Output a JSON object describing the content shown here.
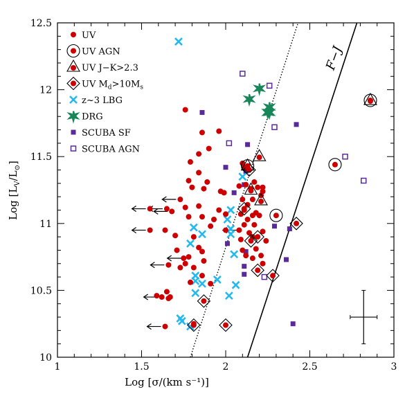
{
  "chart_data": {
    "type": "scatter",
    "xlabel": "Log [σ/(km s⁻¹)]",
    "ylabel": "Log [L_V/L_⊙]",
    "xlim": [
      1,
      3
    ],
    "ylim": [
      10,
      12.5
    ],
    "x_ticks": [
      "1",
      "1.5",
      "2",
      "2.5",
      "3"
    ],
    "y_ticks": [
      "10",
      "10.5",
      "11",
      "11.5",
      "12",
      "12.5"
    ],
    "legend_position": "top-left",
    "lines": [
      {
        "label": "F-J",
        "style": "solid",
        "x": [
          2.13,
          2.78
        ],
        "y": [
          10,
          12.5
        ]
      },
      {
        "label": "",
        "style": "dotted",
        "x": [
          1.79,
          2.43
        ],
        "y": [
          10,
          12.5
        ]
      }
    ],
    "annotation": "F−J",
    "error_bar": {
      "x": 2.82,
      "y": 10.3,
      "x_err": 0.08,
      "y_err": 0.2
    },
    "series": [
      {
        "name": "UV",
        "marker": "filled-circle",
        "color": "#cc0000",
        "points": [
          [
            1.76,
            11.85
          ],
          [
            1.86,
            11.68
          ],
          [
            1.96,
            11.69
          ],
          [
            1.9,
            11.56
          ],
          [
            1.84,
            11.52
          ],
          [
            1.79,
            11.46
          ],
          [
            1.84,
            11.38
          ],
          [
            1.78,
            11.32
          ],
          [
            1.89,
            11.31
          ],
          [
            1.8,
            11.27
          ],
          [
            1.87,
            11.26
          ],
          [
            1.97,
            11.24
          ],
          [
            1.99,
            11.23
          ],
          [
            1.96,
            11.1
          ],
          [
            2.0,
            11.07
          ],
          [
            1.73,
            11.18
          ],
          [
            1.84,
            11.13
          ],
          [
            1.76,
            11.12
          ],
          [
            1.68,
            11.09
          ],
          [
            1.65,
            11.11
          ],
          [
            1.55,
            11.11
          ],
          [
            1.78,
            11.05
          ],
          [
            1.86,
            11.05
          ],
          [
            1.93,
            11.03
          ],
          [
            1.91,
            10.98
          ],
          [
            2.0,
            10.95
          ],
          [
            1.81,
            10.9
          ],
          [
            1.55,
            10.95
          ],
          [
            1.64,
            10.95
          ],
          [
            1.7,
            10.91
          ],
          [
            1.84,
            10.82
          ],
          [
            1.86,
            10.79
          ],
          [
            1.71,
            10.8
          ],
          [
            1.78,
            10.75
          ],
          [
            1.75,
            10.74
          ],
          [
            1.87,
            10.72
          ],
          [
            1.66,
            10.69
          ],
          [
            1.73,
            10.67
          ],
          [
            1.81,
            10.67
          ],
          [
            1.76,
            10.7
          ],
          [
            1.86,
            10.61
          ],
          [
            1.79,
            10.56
          ],
          [
            1.91,
            10.55
          ],
          [
            1.65,
            10.49
          ],
          [
            1.62,
            10.45
          ],
          [
            1.59,
            10.46
          ],
          [
            1.66,
            10.44
          ],
          [
            1.67,
            10.45
          ],
          [
            1.81,
            10.25
          ],
          [
            1.64,
            10.23
          ],
          [
            2.1,
            11.45
          ],
          [
            2.11,
            11.42
          ],
          [
            2.08,
            11.28
          ],
          [
            2.12,
            11.29
          ],
          [
            2.15,
            11.26
          ],
          [
            2.17,
            11.31
          ],
          [
            2.19,
            11.27
          ],
          [
            2.22,
            11.27
          ],
          [
            2.22,
            11.24
          ],
          [
            2.1,
            11.18
          ],
          [
            2.13,
            11.14
          ],
          [
            2.16,
            11.18
          ],
          [
            2.21,
            11.21
          ],
          [
            2.11,
            11.1
          ],
          [
            2.09,
            11.07
          ],
          [
            2.16,
            11.06
          ],
          [
            2.18,
            11.08
          ],
          [
            2.13,
            11.03
          ],
          [
            2.2,
            11.06
          ],
          [
            2.11,
            10.99
          ],
          [
            2.17,
            10.99
          ],
          [
            2.08,
            10.95
          ],
          [
            2.14,
            10.93
          ],
          [
            2.22,
            10.94
          ],
          [
            2.16,
            10.9
          ],
          [
            2.24,
            10.87
          ],
          [
            2.1,
            10.8
          ],
          [
            2.18,
            10.81
          ],
          [
            2.21,
            10.76
          ],
          [
            2.16,
            10.74
          ],
          [
            2.22,
            10.7
          ],
          [
            2.12,
            10.76
          ],
          [
            2.09,
            10.88
          ]
        ]
      },
      {
        "name": "UV AGN",
        "marker": "circled-dot",
        "color": "#cc0000",
        "points": [
          [
            2.3,
            11.06
          ],
          [
            2.65,
            11.44
          ],
          [
            2.86,
            11.92
          ],
          [
            2.13,
            11.43
          ]
        ]
      },
      {
        "name": "UV J−K>2.3",
        "marker": "triangled-dot",
        "color": "#cc0000",
        "points": [
          [
            2.13,
            11.43
          ],
          [
            2.2,
            11.5
          ],
          [
            2.15,
            11.25
          ],
          [
            2.21,
            11.17
          ],
          [
            2.86,
            11.92
          ]
        ]
      },
      {
        "name": "UV M_d>10M_s",
        "marker": "diamond-dot",
        "color": "#cc0000",
        "points": [
          [
            2.14,
            11.4
          ],
          [
            2.11,
            11.11
          ],
          [
            2.19,
            10.9
          ],
          [
            2.15,
            10.87
          ],
          [
            2.19,
            10.65
          ],
          [
            2.28,
            10.61
          ],
          [
            2.42,
            11.0
          ],
          [
            1.87,
            10.42
          ],
          [
            1.81,
            10.24
          ],
          [
            2.0,
            10.24
          ]
        ]
      },
      {
        "name": "z~3 LBG",
        "marker": "cross",
        "color": "#22b8f0",
        "points": [
          [
            1.72,
            12.36
          ],
          [
            2.03,
            11.1
          ],
          [
            2.01,
            11.03
          ],
          [
            2.03,
            10.96
          ],
          [
            2.03,
            10.92
          ],
          [
            1.81,
            10.97
          ],
          [
            1.86,
            10.92
          ],
          [
            2.05,
            10.77
          ],
          [
            1.79,
            10.85
          ],
          [
            1.82,
            10.57
          ],
          [
            1.82,
            10.61
          ],
          [
            1.95,
            10.58
          ],
          [
            1.86,
            10.55
          ],
          [
            2.06,
            10.54
          ],
          [
            1.82,
            10.48
          ],
          [
            2.02,
            10.46
          ],
          [
            1.73,
            10.29
          ],
          [
            1.74,
            10.27
          ],
          [
            1.79,
            10.23
          ],
          [
            2.1,
            11.35
          ]
        ]
      },
      {
        "name": "DRG",
        "marker": "star",
        "color": "#17875a",
        "points": [
          [
            2.2,
            12.01
          ],
          [
            2.14,
            11.93
          ],
          [
            2.26,
            11.87
          ],
          [
            2.26,
            11.83
          ],
          [
            2.25,
            11.83
          ]
        ]
      },
      {
        "name": "SCUBA SF",
        "marker": "filled-square",
        "color": "#5a2a9a",
        "points": [
          [
            1.86,
            11.83
          ],
          [
            2.42,
            11.74
          ],
          [
            2.13,
            11.59
          ],
          [
            2.12,
            11.39
          ],
          [
            2.0,
            11.42
          ],
          [
            2.05,
            11.23
          ],
          [
            2.11,
            11.29
          ],
          [
            2.29,
            10.98
          ],
          [
            2.38,
            10.96
          ],
          [
            2.36,
            10.73
          ],
          [
            2.12,
            10.79
          ],
          [
            2.01,
            10.85
          ],
          [
            2.11,
            10.68
          ],
          [
            2.11,
            10.62
          ],
          [
            2.4,
            10.25
          ]
        ]
      },
      {
        "name": "SCUBA AGN",
        "marker": "open-square",
        "color": "#5a2a9a",
        "points": [
          [
            2.1,
            12.12
          ],
          [
            2.26,
            12.03
          ],
          [
            2.29,
            11.72
          ],
          [
            2.02,
            11.6
          ],
          [
            2.71,
            11.5
          ],
          [
            2.82,
            11.32
          ],
          [
            2.23,
            10.6
          ]
        ]
      }
    ],
    "upper_limits": [
      [
        1.55,
        11.11
      ],
      [
        1.65,
        11.11
      ],
      [
        1.68,
        11.09
      ],
      [
        1.73,
        11.18
      ],
      [
        1.55,
        10.95
      ],
      [
        1.76,
        10.74
      ],
      [
        1.66,
        10.69
      ],
      [
        1.62,
        10.45
      ],
      [
        1.64,
        10.23
      ],
      [
        2.09,
        10.95
      ]
    ]
  }
}
